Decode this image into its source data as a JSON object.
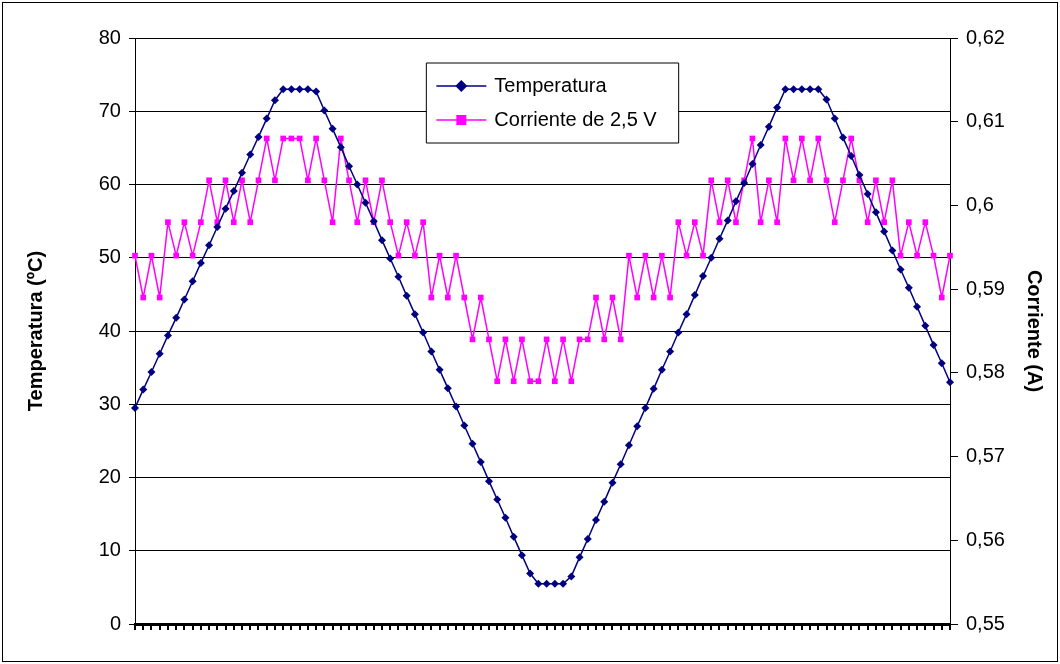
{
  "chart_data": {
    "type": "line",
    "ylabel": "Temperatura (ºC)",
    "y2label": "Corriente (A)",
    "categories": [
      null,
      null,
      null,
      null,
      null,
      null,
      null,
      null,
      null,
      null,
      null,
      null,
      null,
      null,
      null,
      null,
      null,
      null,
      null,
      null,
      null,
      null,
      null,
      null,
      null,
      null,
      null,
      null,
      null,
      null,
      null,
      null,
      null,
      null,
      null,
      null,
      null,
      null,
      null,
      null,
      null,
      null,
      null,
      null,
      null,
      null,
      null,
      null,
      null,
      null,
      null,
      null,
      null,
      null,
      null,
      null,
      null,
      null,
      null,
      null,
      null,
      null,
      null,
      null,
      null,
      null,
      null,
      null,
      null,
      null,
      null,
      null,
      null,
      null,
      null,
      null,
      null,
      null,
      null,
      null,
      null,
      null,
      null,
      null,
      null,
      null,
      null,
      null,
      null,
      null,
      null,
      null,
      null,
      null,
      null,
      null,
      null,
      null,
      null,
      null
    ],
    "series": [
      {
        "name": "Temperatura",
        "color": "#000080",
        "marker": "diamond",
        "values": [
          29.5,
          32.0,
          34.4,
          36.9,
          39.4,
          41.8,
          44.3,
          46.8,
          49.3,
          51.7,
          54.2,
          56.7,
          59.1,
          61.6,
          64.1,
          66.5,
          69.0,
          71.5,
          73,
          73,
          73,
          73,
          72.7,
          70.1,
          67.6,
          65.1,
          62.5,
          60.0,
          57.5,
          55.0,
          52.4,
          49.9,
          47.4,
          44.8,
          42.3,
          39.8,
          37.2,
          34.7,
          32.2,
          29.7,
          27.1,
          24.6,
          22.1,
          19.5,
          17.0,
          14.5,
          11.9,
          9.4,
          6.9,
          5.5,
          5.5,
          5.5,
          5.5,
          6.5,
          9.1,
          11.6,
          14.2,
          16.7,
          19.3,
          21.8,
          24.4,
          27.0,
          29.5,
          32.1,
          34.7,
          37.2,
          39.8,
          42.3,
          44.9,
          47.5,
          50.0,
          52.6,
          55.1,
          57.7,
          60.2,
          62.8,
          65.4,
          67.9,
          70.5,
          73,
          73,
          73,
          73,
          73,
          71.6,
          69.0,
          66.4,
          63.9,
          61.3,
          58.7,
          56.2,
          53.6,
          51.0,
          48.4,
          45.9,
          43.3,
          40.7,
          38.1,
          35.6,
          33
        ]
      },
      {
        "name": "Corriente de 2,5 V",
        "color": "#ff00ff",
        "marker": "square",
        "axis": "y2",
        "values": [
          0.594,
          0.589,
          0.594,
          0.589,
          0.598,
          0.594,
          0.598,
          0.594,
          0.598,
          0.603,
          0.598,
          0.603,
          0.598,
          0.603,
          0.598,
          0.603,
          0.608,
          0.603,
          0.608,
          0.608,
          0.608,
          0.603,
          0.608,
          0.603,
          0.598,
          0.608,
          0.603,
          0.598,
          0.603,
          0.598,
          0.603,
          0.598,
          0.594,
          0.598,
          0.594,
          0.598,
          0.589,
          0.594,
          0.589,
          0.594,
          0.589,
          0.584,
          0.589,
          0.584,
          0.579,
          0.584,
          0.579,
          0.584,
          0.579,
          0.579,
          0.584,
          0.579,
          0.584,
          0.579,
          0.584,
          0.584,
          0.589,
          0.584,
          0.589,
          0.584,
          0.594,
          0.589,
          0.594,
          0.589,
          0.594,
          0.589,
          0.598,
          0.594,
          0.598,
          0.594,
          0.603,
          0.598,
          0.603,
          0.598,
          0.603,
          0.608,
          0.598,
          0.603,
          0.598,
          0.608,
          0.603,
          0.608,
          0.603,
          0.608,
          0.603,
          0.598,
          0.603,
          0.608,
          0.603,
          0.598,
          0.603,
          0.598,
          0.603,
          0.594,
          0.598,
          0.594,
          0.598,
          0.594,
          0.589,
          0.594
        ]
      }
    ],
    "ylim": [
      0,
      80
    ],
    "yticks": [
      0,
      10,
      20,
      30,
      40,
      50,
      60,
      70,
      80
    ],
    "y2lim": [
      0.55,
      0.62
    ],
    "y2ticks": [
      {
        "value": 0.55,
        "label": "0,55"
      },
      {
        "value": 0.56,
        "label": "0,56"
      },
      {
        "value": 0.57,
        "label": "0,57"
      },
      {
        "value": 0.58,
        "label": "0,58"
      },
      {
        "value": 0.59,
        "label": "0,59"
      },
      {
        "value": 0.6,
        "label": "0,6"
      },
      {
        "value": 0.61,
        "label": "0,61"
      },
      {
        "value": 0.62,
        "label": "0,62"
      }
    ],
    "grid": "y",
    "legend": "top",
    "line_style": "solid"
  }
}
